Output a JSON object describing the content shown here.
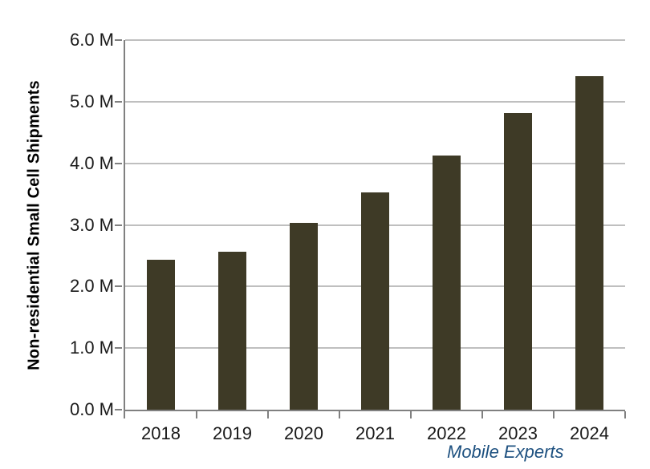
{
  "chart_data": {
    "type": "bar",
    "title": "",
    "xlabel": "",
    "ylabel": "Non-residential Small Cell Shipments",
    "categories": [
      "2018",
      "2019",
      "2020",
      "2021",
      "2022",
      "2023",
      "2024"
    ],
    "values": [
      2.43,
      2.56,
      3.03,
      3.53,
      4.12,
      4.82,
      5.42
    ],
    "ylim": [
      0,
      6
    ],
    "ytick_interval": 1.0,
    "ytick_labels": [
      "0.0 M",
      "1.0 M",
      "2.0 M",
      "3.0 M",
      "4.0 M",
      "5.0 M",
      "6.0 M"
    ],
    "grid": true,
    "legend": false,
    "colors": {
      "bar": "#3e3a26",
      "gridline": "#bfbfbf",
      "axis": "#808080",
      "tick_label": "#1a1a1a",
      "y_title": "#000000",
      "source": "#1e5180"
    },
    "source_label": "Mobile Experts"
  }
}
